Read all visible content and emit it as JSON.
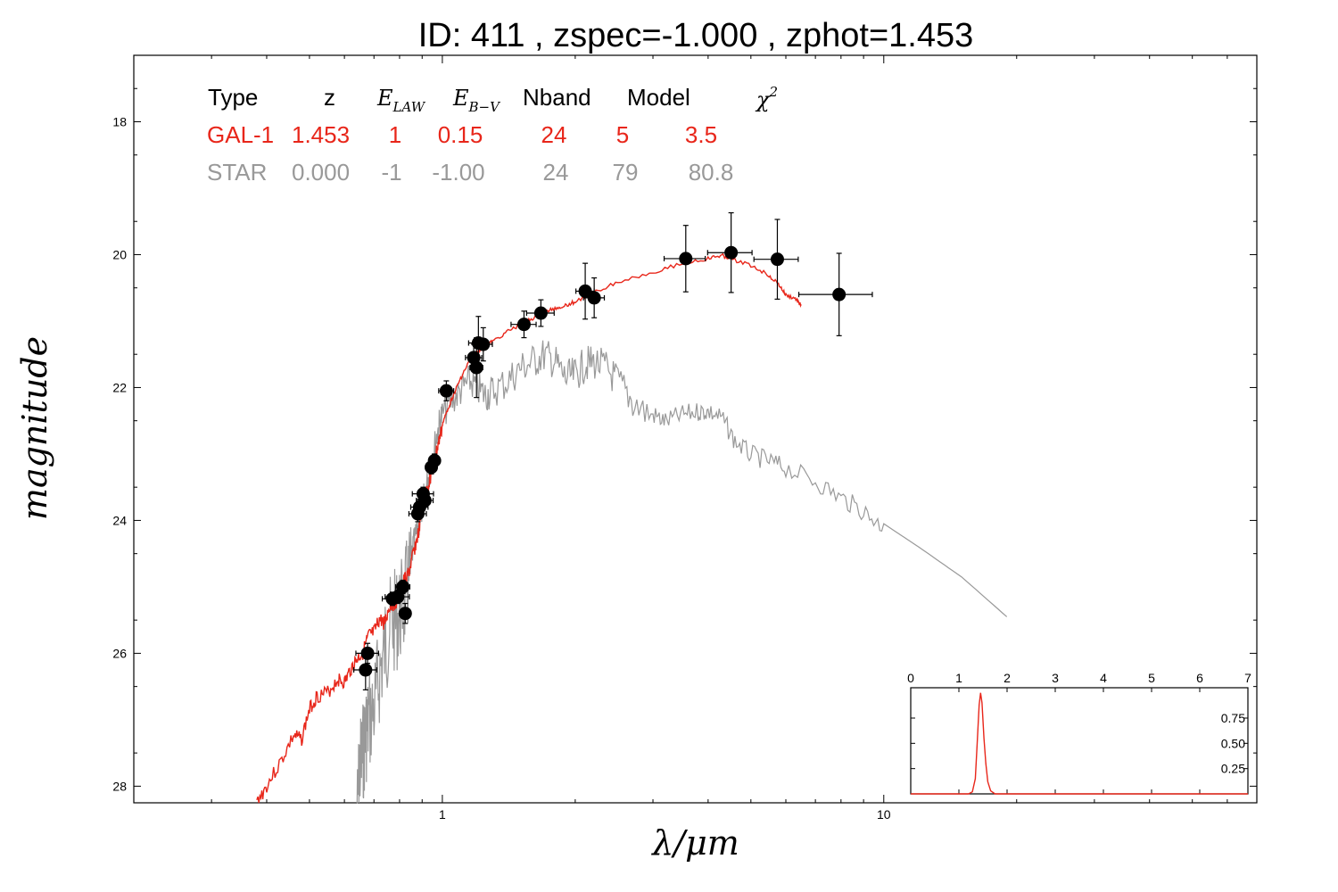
{
  "chart_data": {
    "type": "line",
    "title": "ID:  411   , zspec=-1.000 , zphot=1.453",
    "xlabel": "λ/μm",
    "ylabel": "magnitude",
    "xscale": "log",
    "xlim": [
      0.2,
      70
    ],
    "ylim": [
      28.25,
      17.0
    ],
    "x_tick_labels": [
      "1",
      "10"
    ],
    "y_tick_labels": [
      "18",
      "20",
      "22",
      "24",
      "26",
      "28"
    ],
    "y_ticks": [
      18,
      20,
      22,
      24,
      26,
      28
    ],
    "table": {
      "headers": [
        "Type",
        "z",
        "E_LAW",
        "E_B-V",
        "Nband",
        "Model",
        "χ2"
      ],
      "rows": [
        {
          "type": "GAL-1",
          "z": "1.453",
          "elaw": "1",
          "ebv": "0.15",
          "nband": "24",
          "model": "5",
          "chi2": "3.5"
        },
        {
          "type": "STAR",
          "z": "0.000",
          "elaw": "-1",
          "ebv": "-1.00",
          "nband": "24",
          "model": "79",
          "chi2": "80.8"
        }
      ]
    },
    "photometry": [
      {
        "x": 0.677,
        "y": 26.0,
        "xerr": 0.04,
        "yerr": 0.15
      },
      {
        "x": 0.67,
        "y": 26.25,
        "xerr": 0.04,
        "yerr": 0.3
      },
      {
        "x": 0.771,
        "y": 25.18,
        "xerr": 0.04,
        "yerr": 0.1
      },
      {
        "x": 0.792,
        "y": 25.15,
        "xerr": 0.05,
        "yerr": 0.1
      },
      {
        "x": 0.814,
        "y": 25.0,
        "xerr": 0.03,
        "yerr": 0.1
      },
      {
        "x": 0.824,
        "y": 25.4,
        "xerr": 0.02,
        "yerr": 0.15
      },
      {
        "x": 0.88,
        "y": 23.9,
        "xerr": 0.04,
        "yerr": 0.12
      },
      {
        "x": 0.888,
        "y": 23.8,
        "xerr": 0.04,
        "yerr": 0.12
      },
      {
        "x": 0.905,
        "y": 23.6,
        "xerr": 0.05,
        "yerr": 0.1
      },
      {
        "x": 0.913,
        "y": 23.7,
        "xerr": 0.04,
        "yerr": 0.1
      },
      {
        "x": 0.944,
        "y": 23.2,
        "xerr": 0.02,
        "yerr": 0.1
      },
      {
        "x": 0.96,
        "y": 23.1,
        "xerr": 0.02,
        "yerr": 0.1
      },
      {
        "x": 1.021,
        "y": 22.05,
        "xerr": 0.04,
        "yerr": 0.15
      },
      {
        "x": 1.178,
        "y": 21.55,
        "xerr": 0.05,
        "yerr": 0.2
      },
      {
        "x": 1.195,
        "y": 21.7,
        "xerr": 0.04,
        "yerr": 0.45
      },
      {
        "x": 1.207,
        "y": 21.33,
        "xerr": 0.06,
        "yerr": 0.4
      },
      {
        "x": 1.238,
        "y": 21.35,
        "xerr": 0.06,
        "yerr": 0.25
      },
      {
        "x": 1.531,
        "y": 21.05,
        "xerr": 0.1,
        "yerr": 0.2
      },
      {
        "x": 1.672,
        "y": 20.88,
        "xerr": 0.12,
        "yerr": 0.2
      },
      {
        "x": 2.107,
        "y": 20.55,
        "xerr": 0.1,
        "yerr": 0.42
      },
      {
        "x": 2.208,
        "y": 20.65,
        "xerr": 0.12,
        "yerr": 0.3
      },
      {
        "x": 3.56,
        "y": 20.06,
        "xerr": 0.38,
        "yerr": 0.5
      },
      {
        "x": 4.51,
        "y": 19.97,
        "xerr": 0.52,
        "yerr": 0.6
      },
      {
        "x": 5.74,
        "y": 20.07,
        "xerr": 0.66,
        "yerr": 0.6
      },
      {
        "x": 7.92,
        "y": 20.6,
        "xerr": 1.5,
        "yerr": 0.62
      }
    ],
    "gal_model": [
      [
        0.38,
        28.2
      ],
      [
        0.4,
        27.95
      ],
      [
        0.43,
        27.6
      ],
      [
        0.46,
        27.2
      ],
      [
        0.48,
        27.25
      ],
      [
        0.5,
        26.8
      ],
      [
        0.52,
        26.6
      ],
      [
        0.55,
        26.55
      ],
      [
        0.58,
        26.35
      ],
      [
        0.6,
        26.4
      ],
      [
        0.62,
        26.2
      ],
      [
        0.64,
        26.05
      ],
      [
        0.66,
        25.95
      ],
      [
        0.68,
        25.7
      ],
      [
        0.7,
        25.65
      ],
      [
        0.72,
        25.45
      ],
      [
        0.74,
        25.5
      ],
      [
        0.76,
        25.25
      ],
      [
        0.78,
        25.2
      ],
      [
        0.8,
        25.1
      ],
      [
        0.82,
        24.85
      ],
      [
        0.84,
        24.75
      ],
      [
        0.86,
        24.45
      ],
      [
        0.88,
        24.2
      ],
      [
        0.9,
        23.85
      ],
      [
        0.92,
        23.55
      ],
      [
        0.94,
        23.3
      ],
      [
        0.96,
        23.05
      ],
      [
        0.98,
        22.8
      ],
      [
        1.0,
        22.55
      ],
      [
        1.03,
        22.3
      ],
      [
        1.06,
        22.1
      ],
      [
        1.1,
        21.85
      ],
      [
        1.15,
        21.6
      ],
      [
        1.2,
        21.45
      ],
      [
        1.25,
        21.35
      ],
      [
        1.3,
        21.3
      ],
      [
        1.4,
        21.15
      ],
      [
        1.5,
        21.05
      ],
      [
        1.6,
        20.95
      ],
      [
        1.7,
        20.85
      ],
      [
        1.8,
        20.8
      ],
      [
        1.9,
        20.75
      ],
      [
        2.0,
        20.7
      ],
      [
        2.2,
        20.55
      ],
      [
        2.5,
        20.4
      ],
      [
        3.0,
        20.25
      ],
      [
        3.5,
        20.12
      ],
      [
        4.0,
        20.05
      ],
      [
        4.3,
        20.0
      ],
      [
        4.5,
        20.05
      ],
      [
        5.0,
        20.15
      ],
      [
        5.5,
        20.3
      ],
      [
        5.8,
        20.45
      ],
      [
        6.0,
        20.6
      ],
      [
        6.3,
        20.65
      ],
      [
        6.5,
        20.75
      ]
    ],
    "star_model": [
      [
        0.64,
        28.2
      ],
      [
        0.65,
        27.4
      ],
      [
        0.66,
        27.2
      ],
      [
        0.67,
        26.9
      ],
      [
        0.68,
        26.7
      ],
      [
        0.7,
        26.5
      ],
      [
        0.72,
        26.0
      ],
      [
        0.74,
        25.6
      ],
      [
        0.76,
        25.3
      ],
      [
        0.78,
        25.2
      ],
      [
        0.8,
        25.1
      ],
      [
        0.82,
        24.9
      ],
      [
        0.84,
        24.6
      ],
      [
        0.86,
        24.3
      ],
      [
        0.88,
        24.0
      ],
      [
        0.9,
        23.7
      ],
      [
        0.92,
        23.4
      ],
      [
        0.94,
        23.1
      ],
      [
        0.96,
        22.8
      ],
      [
        0.98,
        22.5
      ],
      [
        1.0,
        22.3
      ],
      [
        1.05,
        22.1
      ],
      [
        1.1,
        21.95
      ],
      [
        1.15,
        21.8
      ],
      [
        1.2,
        21.9
      ],
      [
        1.25,
        22.0
      ],
      [
        1.3,
        21.95
      ],
      [
        1.4,
        21.8
      ],
      [
        1.5,
        21.6
      ],
      [
        1.6,
        21.5
      ],
      [
        1.7,
        21.4
      ],
      [
        1.8,
        21.5
      ],
      [
        1.9,
        21.75
      ],
      [
        2.0,
        21.7
      ],
      [
        2.1,
        21.55
      ],
      [
        2.2,
        21.5
      ],
      [
        2.35,
        21.6
      ],
      [
        2.5,
        21.8
      ],
      [
        2.7,
        22.1
      ],
      [
        3.0,
        22.35
      ],
      [
        3.2,
        22.45
      ],
      [
        3.5,
        22.35
      ],
      [
        3.8,
        22.3
      ],
      [
        4.0,
        22.3
      ],
      [
        4.3,
        22.4
      ],
      [
        4.6,
        22.75
      ],
      [
        5.0,
        22.95
      ],
      [
        5.5,
        23.05
      ],
      [
        6.0,
        23.15
      ],
      [
        7.0,
        23.35
      ],
      [
        8.0,
        23.6
      ],
      [
        9.0,
        23.8
      ],
      [
        10.0,
        24.05
      ],
      [
        12.0,
        24.4
      ],
      [
        15.0,
        24.85
      ],
      [
        19.0,
        25.45
      ]
    ],
    "pdz_inset": {
      "type": "line",
      "xlim": [
        0,
        7
      ],
      "ylim": [
        0,
        1.05
      ],
      "x_ticks": [
        0,
        1,
        2,
        3,
        4,
        5,
        6,
        7
      ],
      "x_tick_labels": [
        "0",
        "1",
        "2",
        "3",
        "4",
        "5",
        "6",
        "7"
      ],
      "y_ticks": [
        0.25,
        0.5,
        0.75
      ],
      "y_tick_labels": [
        "0.25",
        "0.50",
        "0.75"
      ],
      "curve": [
        [
          0,
          0.0
        ],
        [
          1.2,
          0.0
        ],
        [
          1.28,
          0.02
        ],
        [
          1.34,
          0.15
        ],
        [
          1.38,
          0.5
        ],
        [
          1.42,
          0.88
        ],
        [
          1.45,
          1.0
        ],
        [
          1.48,
          0.9
        ],
        [
          1.52,
          0.55
        ],
        [
          1.56,
          0.3
        ],
        [
          1.6,
          0.12
        ],
        [
          1.66,
          0.03
        ],
        [
          1.75,
          0.0
        ],
        [
          7.0,
          0.0
        ]
      ]
    },
    "colors": {
      "gal": "#e8261a",
      "star": "#999999",
      "points": "#000000"
    }
  }
}
